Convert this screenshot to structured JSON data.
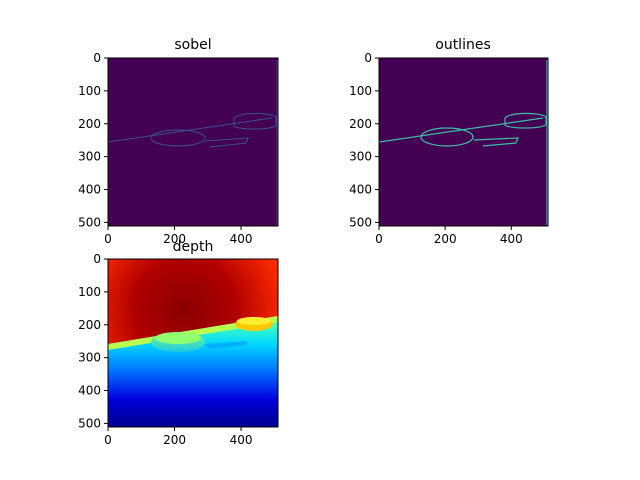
{
  "colors": {
    "viridis_bg": "#440154",
    "sobel_edge": "#3b518b",
    "outline_edge": "#3dbfa6",
    "outline_edge_alt": "#5ec962"
  },
  "chart_data": [
    {
      "type": "heatmap",
      "title": "sobel",
      "colormap": "viridis",
      "xlim": [
        0,
        511
      ],
      "ylim": [
        511,
        0
      ],
      "xticks": [
        0,
        200,
        400
      ],
      "yticks": [
        0,
        100,
        200,
        300,
        400,
        500
      ],
      "grid": false
    },
    {
      "type": "heatmap",
      "title": "outlines",
      "colormap": "viridis",
      "xlim": [
        0,
        511
      ],
      "ylim": [
        511,
        0
      ],
      "xticks": [
        0,
        200,
        400
      ],
      "yticks": [
        0,
        100,
        200,
        300,
        400,
        500
      ],
      "grid": false
    },
    {
      "type": "heatmap",
      "title": "depth",
      "colormap": "jet",
      "xlim": [
        0,
        511
      ],
      "ylim": [
        511,
        0
      ],
      "xticks": [
        0,
        200,
        400
      ],
      "yticks": [
        0,
        100,
        200,
        300,
        400,
        500
      ],
      "grid": false
    }
  ]
}
